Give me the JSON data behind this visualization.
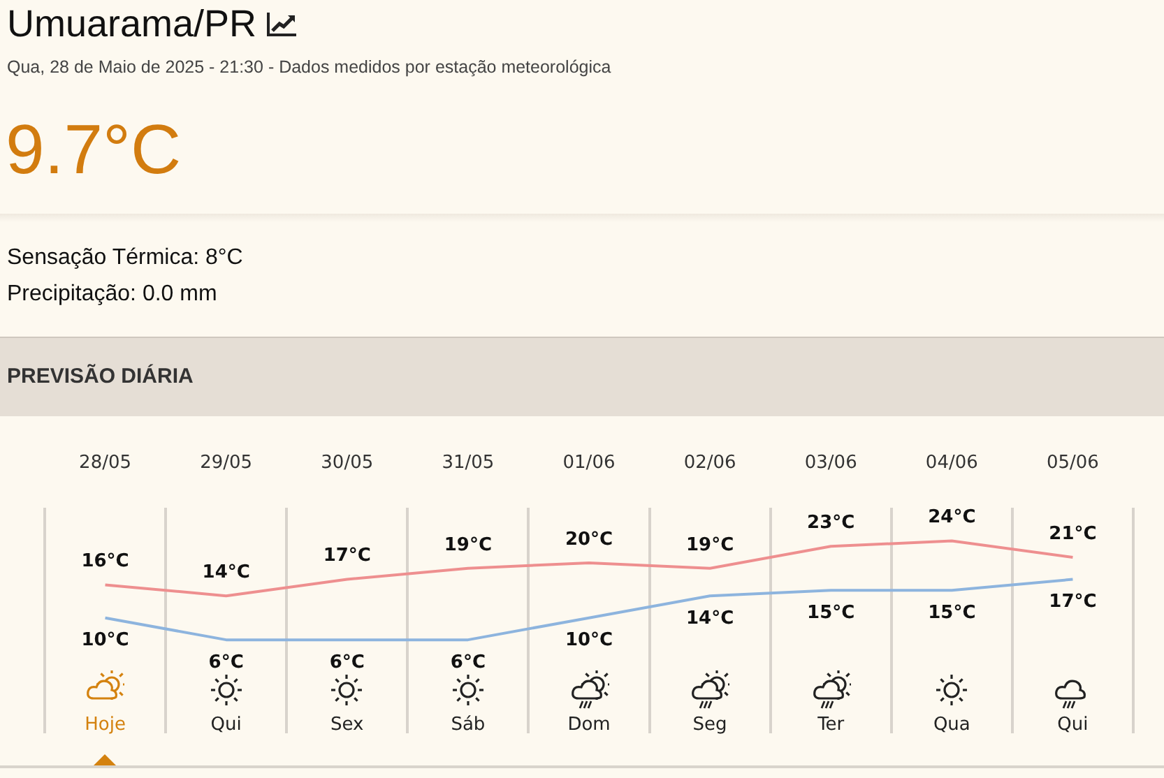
{
  "chart_data": {
    "type": "line",
    "title": "Umuarama/PR",
    "subtitle": "Qua, 28 de Maio de 2025 - 21:30 - Dados medidos por estação meteorológica",
    "annotations": [
      "9.7°C",
      "Sensação Térmica: 8°C",
      "Precipitação: 0.0 mm",
      "PREVISÃO DIÁRIA",
      "Hoje",
      "Qui",
      "Sex",
      "Sáb",
      "Dom",
      "Seg",
      "Ter",
      "Qua",
      "Qui"
    ],
    "categories": [
      "28/05",
      "29/05",
      "30/05",
      "31/05",
      "01/06",
      "02/06",
      "03/06",
      "04/06",
      "05/06"
    ],
    "series": [
      {
        "color": "#ee8f8f",
        "values": [
          16,
          14,
          17,
          19,
          20,
          19,
          23,
          24,
          21
        ],
        "value_labels": [
          "16°C",
          "14°C",
          "17°C",
          "19°C",
          "20°C",
          "19°C",
          "23°C",
          "24°C",
          "21°C"
        ]
      },
      {
        "color": "#8db4de",
        "values": [
          10,
          6,
          6,
          6,
          10,
          14,
          15,
          15,
          17
        ],
        "value_labels": [
          "10°C",
          "6°C",
          "6°C",
          "6°C",
          "10°C",
          "14°C",
          "15°C",
          "15°C",
          "17°C"
        ]
      }
    ],
    "ylim": [
      -11,
      30
    ],
    "grid": "x",
    "tick_labels": "x",
    "legend": false,
    "marker": "none",
    "line_style": "solid"
  }
}
